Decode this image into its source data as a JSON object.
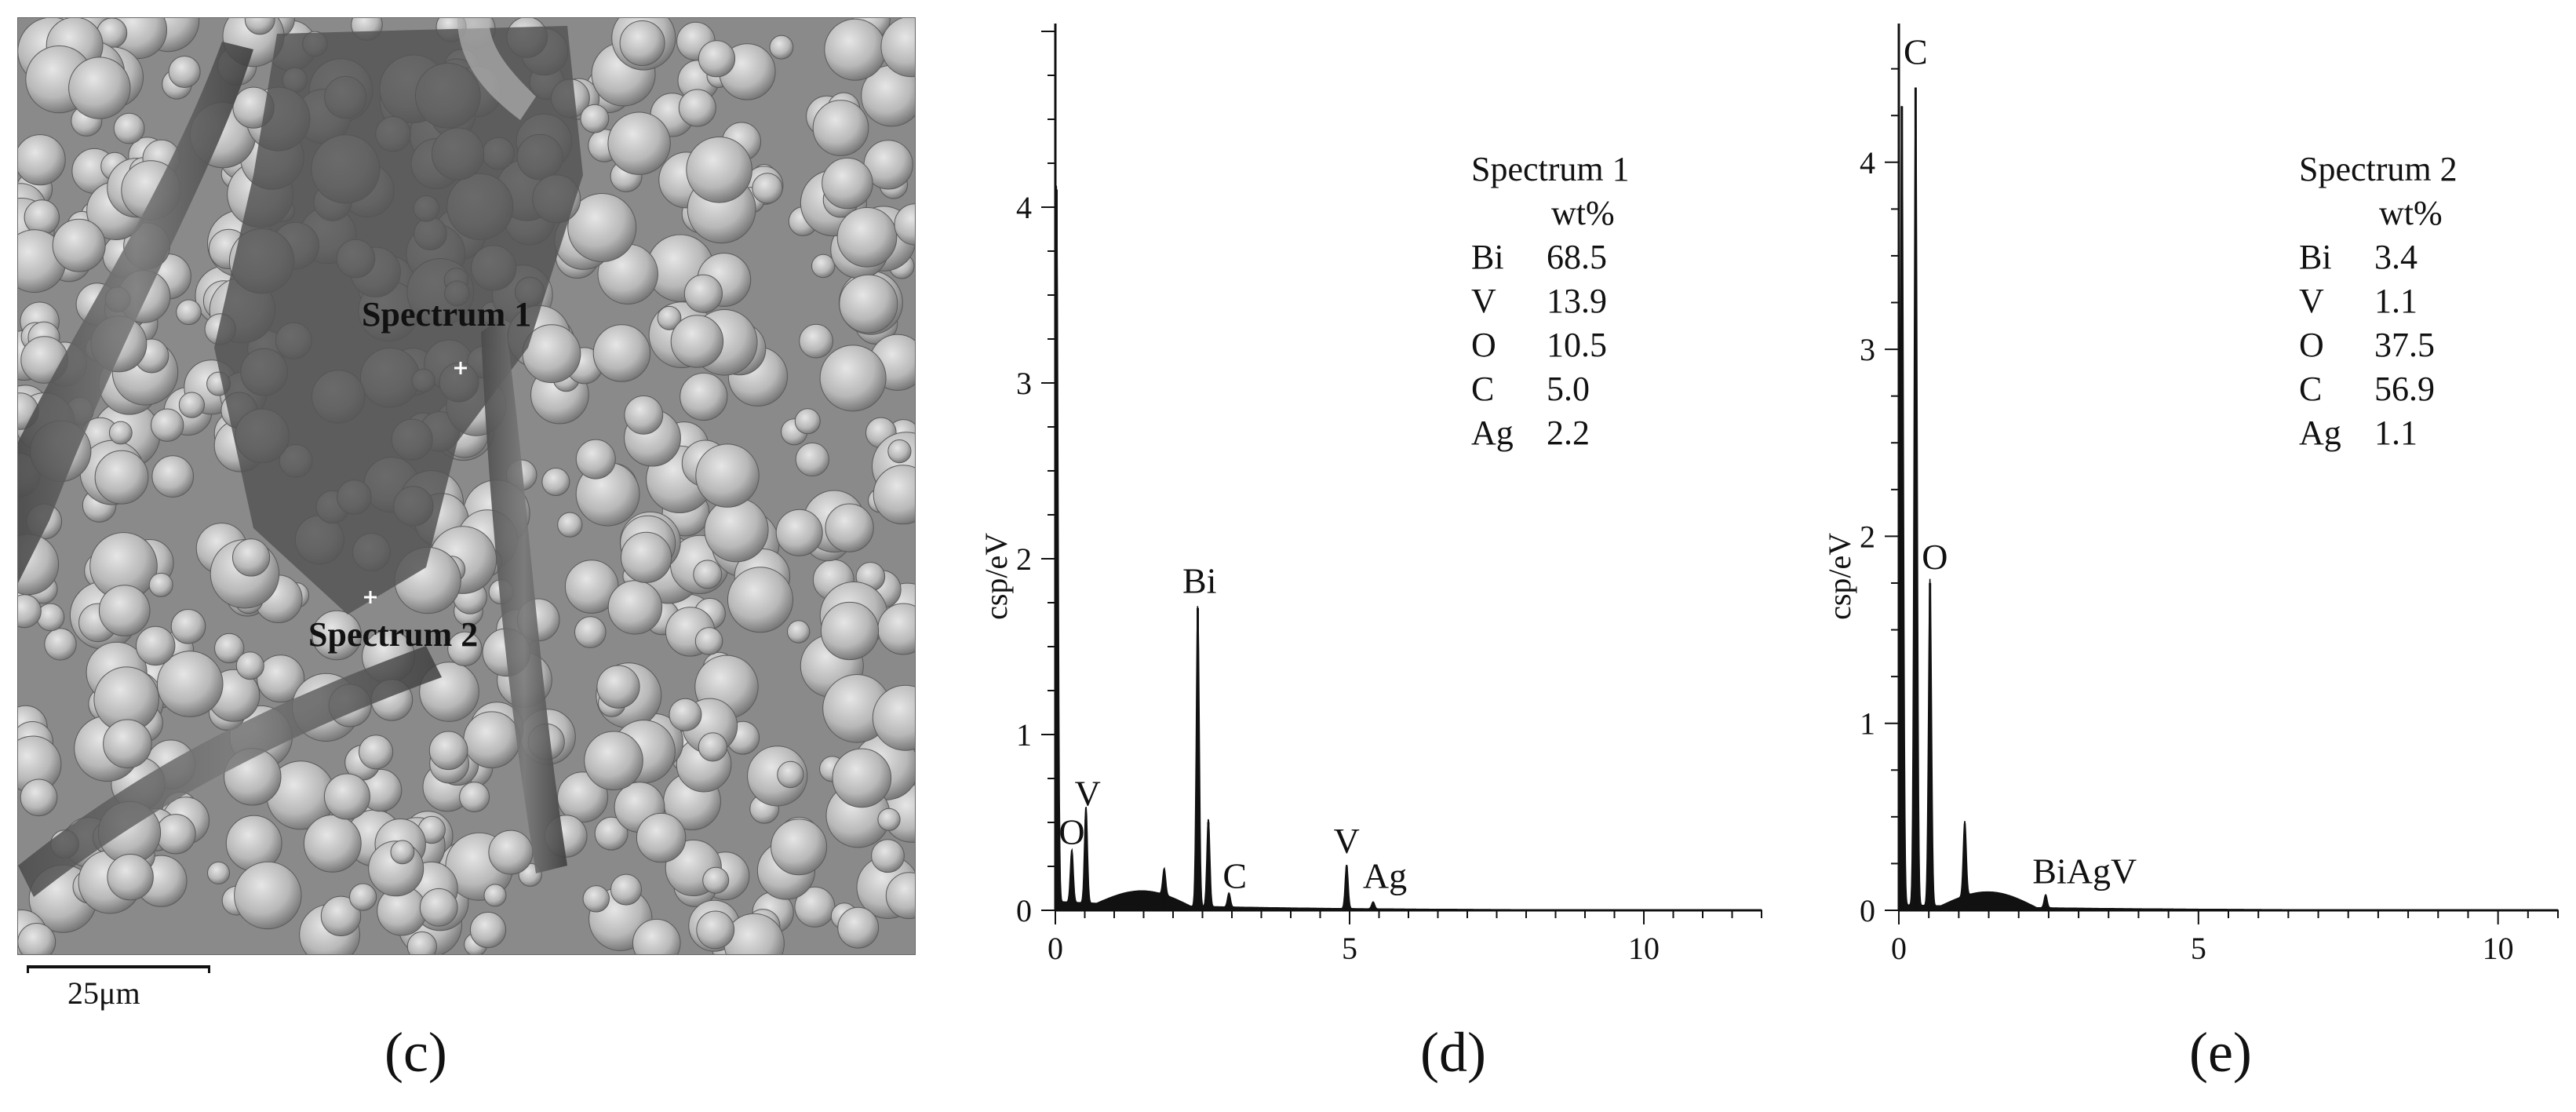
{
  "panels": {
    "c": {
      "caption": "(c)",
      "scale_bar": "25μm",
      "markers": [
        {
          "label": "Spectrum 1"
        },
        {
          "label": "Spectrum 2"
        }
      ]
    },
    "d": {
      "caption": "(d)"
    },
    "e": {
      "caption": "(e)"
    }
  },
  "chart_data": [
    {
      "type": "line",
      "panel": "d",
      "ylabel": "csp/eV",
      "xlim": [
        0,
        12
      ],
      "ylim": [
        0,
        5
      ],
      "xticks": [
        0,
        5,
        10
      ],
      "yticks": [
        0,
        1,
        2,
        3,
        4
      ],
      "legend": {
        "title": "Spectrum 1",
        "unit": "wt%",
        "rows": [
          {
            "element": "Bi",
            "value": "68.5"
          },
          {
            "element": "V",
            "value": "13.9"
          },
          {
            "element": "O",
            "value": "10.5"
          },
          {
            "element": "C",
            "value": "5.0"
          },
          {
            "element": "Ag",
            "value": "2.2"
          }
        ],
        "placement": "top-right"
      },
      "spectrum": {
        "peaks": [
          {
            "x": 0.02,
            "y": 4.1
          },
          {
            "x": 0.28,
            "y": 0.3
          },
          {
            "x": 0.52,
            "y": 0.55
          },
          {
            "x": 1.85,
            "y": 0.15
          },
          {
            "x": 2.42,
            "y": 1.72
          },
          {
            "x": 2.6,
            "y": 0.5
          },
          {
            "x": 2.95,
            "y": 0.08
          },
          {
            "x": 4.95,
            "y": 0.25
          },
          {
            "x": 5.4,
            "y": 0.04
          }
        ],
        "background": 0.05
      },
      "peak_labels": [
        {
          "text": "O",
          "x": 0.28,
          "y": 0.35
        },
        {
          "text": "V",
          "x": 0.55,
          "y": 0.57
        },
        {
          "text": "Bi",
          "x": 2.45,
          "y": 1.78
        },
        {
          "text": "C",
          "x": 3.05,
          "y": 0.1
        },
        {
          "text": "V",
          "x": 4.95,
          "y": 0.3
        },
        {
          "text": "Ag",
          "x": 5.6,
          "y": 0.1
        }
      ]
    },
    {
      "type": "line",
      "panel": "e",
      "ylabel": "csp/eV",
      "xlim": [
        0,
        11
      ],
      "ylim": [
        0,
        4.7
      ],
      "xticks": [
        0,
        5,
        10
      ],
      "yticks": [
        0,
        1,
        2,
        3,
        4
      ],
      "legend": {
        "title": "Spectrum 2",
        "unit": "wt%",
        "rows": [
          {
            "element": "Bi",
            "value": "3.4"
          },
          {
            "element": "V",
            "value": "1.1"
          },
          {
            "element": "O",
            "value": "37.5"
          },
          {
            "element": "C",
            "value": "56.9"
          },
          {
            "element": "Ag",
            "value": "1.1"
          }
        ],
        "placement": "top-right"
      },
      "spectrum": {
        "peaks": [
          {
            "x": 0.05,
            "y": 4.3
          },
          {
            "x": 0.28,
            "y": 4.4
          },
          {
            "x": 0.52,
            "y": 1.75
          },
          {
            "x": 1.1,
            "y": 0.4
          },
          {
            "x": 2.45,
            "y": 0.07
          }
        ],
        "background": 0.03
      },
      "peak_labels": [
        {
          "text": "C",
          "x": 0.28,
          "y": 4.5
        },
        {
          "text": "O",
          "x": 0.6,
          "y": 1.8
        },
        {
          "text": "BiAgV",
          "x": 3.1,
          "y": 0.12
        }
      ]
    }
  ]
}
